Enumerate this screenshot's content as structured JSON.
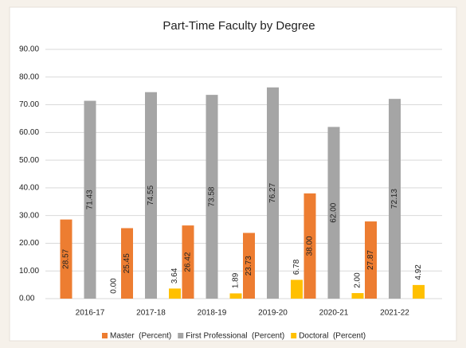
{
  "chart_data": {
    "type": "bar",
    "title": "Part-Time Faculty by Degree",
    "categories": [
      "2016-17",
      "2017-18",
      "2018-19",
      "2019-20",
      "2020-21",
      "2021-22"
    ],
    "series": [
      {
        "name": "Master  (Percent)",
        "color": "#ed7d31",
        "values": [
          28.57,
          25.45,
          26.42,
          23.73,
          38,
          27.87
        ],
        "value_labels": [
          "28.57",
          "25.45",
          "26.42",
          "23.73",
          "38.00",
          "27.87"
        ]
      },
      {
        "name": "First Professional  (Percent)",
        "color": "#a5a5a5",
        "values": [
          71.43,
          74.55,
          73.58,
          76.27,
          62,
          72.13
        ],
        "value_labels": [
          "71.43",
          "74.55",
          "73.58",
          "76.27",
          "62.00",
          "72.13"
        ]
      },
      {
        "name": "Doctoral  (Percent)",
        "color": "#ffc000",
        "values": [
          0,
          3.64,
          1.89,
          6.78,
          2,
          4.92
        ],
        "value_labels": [
          "0.00",
          "3.64",
          "1.89",
          "6.78",
          "2.00",
          "4.92"
        ]
      }
    ],
    "ylim": [
      0,
      90
    ],
    "yticks": [
      {
        "value": 0,
        "label": "0.00"
      },
      {
        "value": 10,
        "label": "10.00"
      },
      {
        "value": 20,
        "label": "20.00"
      },
      {
        "value": 30,
        "label": "30.00"
      },
      {
        "value": 40,
        "label": "40.00"
      },
      {
        "value": 50,
        "label": "50.00"
      },
      {
        "value": 60,
        "label": "60.00"
      },
      {
        "value": 70,
        "label": "70.00"
      },
      {
        "value": 80,
        "label": "80.00"
      },
      {
        "value": 90,
        "label": "90.00"
      }
    ],
    "grid": true,
    "legend": "bottom"
  }
}
